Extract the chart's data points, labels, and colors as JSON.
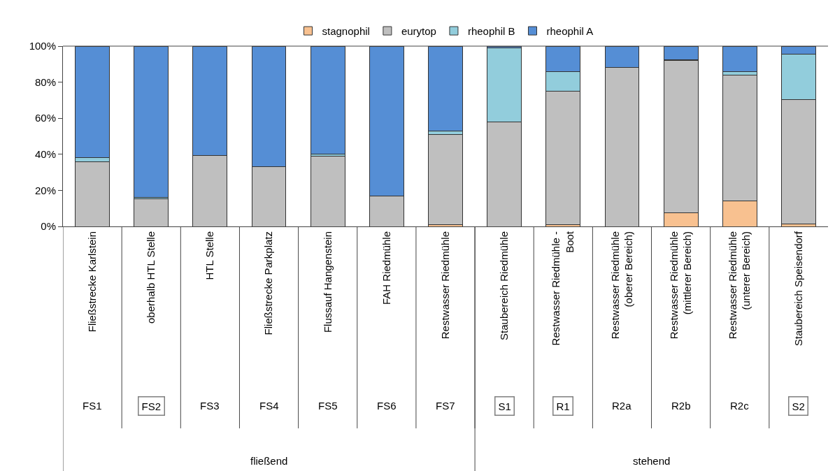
{
  "chart_data": {
    "type": "bar",
    "stacked": true,
    "legend": "top",
    "categories": [
      "Fließstrecke Karlstein",
      "oberhalb HTL Stelle",
      "HTL Stelle",
      "Fließstrecke Parkplatz",
      "Flussauf Hangenstein",
      "FAH Riedmühle",
      "Restwasser Riedmühle",
      "Staubereich Riedmühle",
      "Restwasser Riedmühle - Boot",
      "Restwasser Riedmühle (oberer Bereich)",
      "Restwasser Riedmühle (mittlerer Bereich)",
      "Restwasser Riedmühle (unterer Bereich)",
      "Staubereich Speisendorf"
    ],
    "series": [
      {
        "name": "stagnophil",
        "color": "#f8c190",
        "values": [
          0,
          0,
          0,
          0,
          0,
          0,
          1,
          0,
          1,
          0,
          7.5,
          14,
          1.5
        ]
      },
      {
        "name": "eurytop",
        "color": "#bfbfbf",
        "values": [
          36,
          15.5,
          39.5,
          33,
          39,
          17,
          50,
          58,
          74,
          88,
          84.5,
          70,
          69
        ]
      },
      {
        "name": "rheophil B",
        "color": "#92cddc",
        "values": [
          2,
          0.5,
          0,
          0,
          1,
          0,
          2,
          41,
          11,
          0,
          0.5,
          2,
          25
        ]
      },
      {
        "name": "rheophil A",
        "color": "#558ed5",
        "values": [
          62,
          84,
          60.5,
          67,
          60,
          83,
          47,
          1,
          14,
          12,
          7.5,
          14,
          4.5
        ]
      }
    ],
    "ylim": [
      0,
      100
    ],
    "yticks": [
      {
        "value": 0,
        "label": "0%"
      },
      {
        "value": 20,
        "label": "20%"
      },
      {
        "value": 40,
        "label": "40%"
      },
      {
        "value": 60,
        "label": "60%"
      },
      {
        "value": 80,
        "label": "80%"
      },
      {
        "value": 100,
        "label": "100%"
      }
    ],
    "annotations": [
      "FS1",
      "FS2",
      "FS3",
      "FS4",
      "FS5",
      "FS6",
      "FS7",
      "S1",
      "R1",
      "R2a",
      "R2b",
      "R2c",
      "S2",
      "fließend",
      "stehend"
    ]
  }
}
